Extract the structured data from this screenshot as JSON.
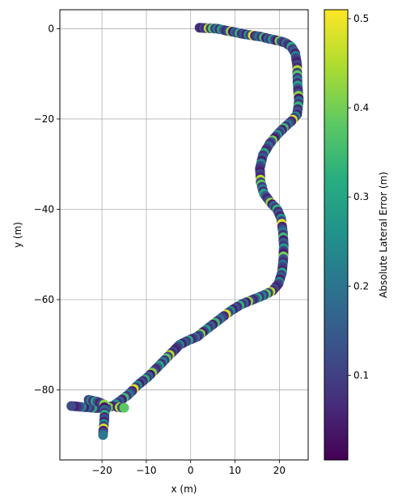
{
  "chart_data": {
    "type": "scatter",
    "xlabel": "x (m)",
    "ylabel": "y (m)",
    "xlim": [
      -29.5,
      26.5
    ],
    "ylim": [
      -95.5,
      4.2
    ],
    "xticks": [
      -20,
      -10,
      0,
      10,
      20
    ],
    "yticks": [
      0,
      -20,
      -40,
      -60,
      -80
    ],
    "grid": true,
    "colormap": "viridis",
    "colorbar": {
      "label": "Absolute Lateral Error (m)",
      "range": [
        0.005,
        0.51
      ],
      "ticks": [
        0.1,
        0.2,
        0.3,
        0.4,
        0.5
      ]
    },
    "path": [
      [
        2,
        0.2
      ],
      [
        4,
        0.1
      ],
      [
        6,
        0
      ],
      [
        8,
        -0.4
      ],
      [
        10,
        -0.8
      ],
      [
        12,
        -1.2
      ],
      [
        14,
        -1.5
      ],
      [
        16,
        -1.8
      ],
      [
        18,
        -2.3
      ],
      [
        20,
        -2.7
      ],
      [
        21.5,
        -3.2
      ],
      [
        22.7,
        -4
      ],
      [
        23.6,
        -5.5
      ],
      [
        24,
        -8
      ],
      [
        24.1,
        -12
      ],
      [
        24.4,
        -16
      ],
      [
        24,
        -19
      ],
      [
        22.7,
        -20.5
      ],
      [
        21,
        -22
      ],
      [
        19.5,
        -23.5
      ],
      [
        17.8,
        -25.5
      ],
      [
        16.3,
        -28
      ],
      [
        15.6,
        -31
      ],
      [
        15.8,
        -34
      ],
      [
        16.5,
        -36.5
      ],
      [
        18,
        -38.5
      ],
      [
        19.5,
        -40
      ],
      [
        20.4,
        -42
      ],
      [
        20.8,
        -45
      ],
      [
        21,
        -48
      ],
      [
        20.9,
        -51
      ],
      [
        20.6,
        -54
      ],
      [
        19.8,
        -56.5
      ],
      [
        18.5,
        -58
      ],
      [
        16.5,
        -59
      ],
      [
        14,
        -60
      ],
      [
        11.5,
        -61
      ],
      [
        9,
        -62.5
      ],
      [
        7,
        -64
      ],
      [
        5,
        -65.5
      ],
      [
        3,
        -67
      ],
      [
        1.5,
        -68.2
      ],
      [
        -0.5,
        -69
      ],
      [
        -2.5,
        -70
      ],
      [
        -4,
        -71.5
      ],
      [
        -5.5,
        -73
      ],
      [
        -7.5,
        -75
      ],
      [
        -9.5,
        -77
      ],
      [
        -12,
        -79
      ],
      [
        -14,
        -81
      ],
      [
        -16,
        -82.5
      ],
      [
        -17.5,
        -83.5
      ],
      [
        -19,
        -84
      ],
      [
        -21.5,
        -84
      ],
      [
        -24,
        -83.8
      ],
      [
        -27.5,
        -83.5
      ]
    ],
    "branch": [
      [
        -16.5,
        -83.8
      ],
      [
        -14.5,
        -84
      ]
    ],
    "spur": [
      [
        -23,
        -82.2
      ],
      [
        -21,
        -82.6
      ],
      [
        -19.5,
        -83.2
      ],
      [
        -19.4,
        -85
      ],
      [
        -19.5,
        -87
      ],
      [
        -19.7,
        -89
      ],
      [
        -19.8,
        -90.5
      ]
    ],
    "error_values": [
      0.08,
      0.05,
      0.12,
      0.06,
      0.45,
      0.1,
      0.38,
      0.09,
      0.22,
      0.07,
      0.3,
      0.15,
      0.06,
      0.11,
      0.42,
      0.04,
      0.18,
      0.09,
      0.33,
      0.07,
      0.14,
      0.05,
      0.25,
      0.1,
      0.48,
      0.06,
      0.12,
      0.2,
      0.08,
      0.35,
      0.05,
      0.16,
      0.09,
      0.28,
      0.11,
      0.04,
      0.4,
      0.13,
      0.07,
      0.19,
      0.1,
      0.06,
      0.31,
      0.09,
      0.15,
      0.05,
      0.23,
      0.12
    ]
  }
}
